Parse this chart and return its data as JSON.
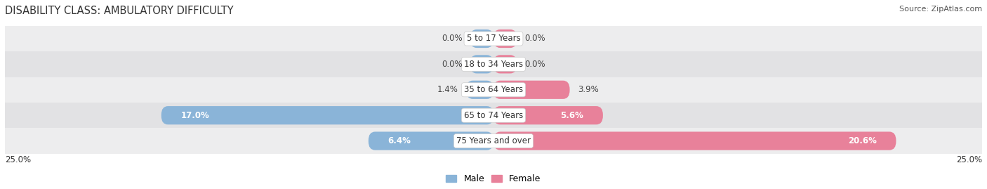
{
  "title": "DISABILITY CLASS: AMBULATORY DIFFICULTY",
  "source": "Source: ZipAtlas.com",
  "categories": [
    "5 to 17 Years",
    "18 to 34 Years",
    "35 to 64 Years",
    "65 to 74 Years",
    "75 Years and over"
  ],
  "male_values": [
    0.0,
    0.0,
    1.4,
    17.0,
    6.4
  ],
  "female_values": [
    0.0,
    0.0,
    3.9,
    5.6,
    20.6
  ],
  "male_color": "#8ab4d8",
  "female_color": "#e8819a",
  "row_bg_even": "#ededee",
  "row_bg_odd": "#e2e2e4",
  "max_val": 25.0,
  "legend_male": "Male",
  "legend_female": "Female",
  "title_fontsize": 10.5,
  "source_fontsize": 8,
  "label_fontsize": 8.5,
  "category_fontsize": 8.5,
  "zero_stub": 1.2
}
